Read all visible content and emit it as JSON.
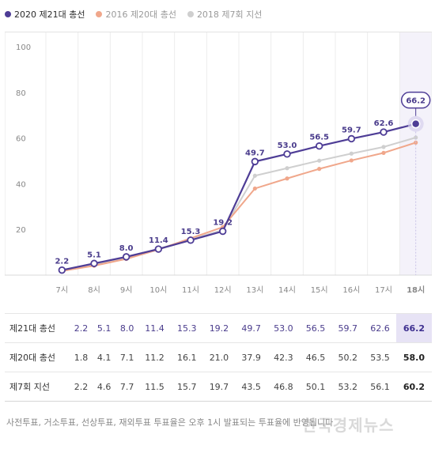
{
  "legend": [
    {
      "label": "2020 제21대 총선",
      "color": "#4e3d96"
    },
    {
      "label": "2016 제20대 총선",
      "color": "#f0a78b"
    },
    {
      "label": "2018 제7회 지선",
      "color": "#cfcfcf"
    }
  ],
  "chart_data": {
    "type": "line",
    "categories": [
      "7시",
      "8시",
      "9시",
      "10시",
      "11시",
      "12시",
      "13시",
      "14시",
      "15시",
      "16시",
      "17시",
      "18시"
    ],
    "ylim": [
      0,
      100
    ],
    "yticks": [
      20,
      40,
      60,
      80,
      100
    ],
    "grid": true,
    "highlight_category": "18시",
    "series": [
      {
        "name": "2020 제21대 총선",
        "color": "#4e3d96",
        "values": [
          2.2,
          5.1,
          8.0,
          11.4,
          15.3,
          19.2,
          49.7,
          53.0,
          56.5,
          59.7,
          62.6,
          66.2
        ]
      },
      {
        "name": "2016 제20대 총선",
        "color": "#f0a78b",
        "values": [
          1.8,
          4.1,
          7.1,
          11.2,
          16.1,
          21.0,
          37.9,
          42.3,
          46.5,
          50.2,
          53.5,
          58.0
        ]
      },
      {
        "name": "2018 제7회 지선",
        "color": "#cfcfcf",
        "values": [
          2.2,
          4.6,
          7.7,
          11.5,
          15.7,
          19.7,
          43.5,
          46.8,
          50.1,
          53.2,
          56.1,
          60.2
        ]
      }
    ]
  },
  "table": {
    "rows": [
      {
        "label": "제21대 총선",
        "values": [
          "2.2",
          "5.1",
          "8.0",
          "11.4",
          "15.3",
          "19.2",
          "49.7",
          "53.0",
          "56.5",
          "59.7",
          "62.6",
          "66.2"
        ]
      },
      {
        "label": "제20대 총선",
        "values": [
          "1.8",
          "4.1",
          "7.1",
          "11.2",
          "16.1",
          "21.0",
          "37.9",
          "42.3",
          "46.5",
          "50.2",
          "53.5",
          "58.0"
        ]
      },
      {
        "label": "제7회 지선",
        "values": [
          "2.2",
          "4.6",
          "7.7",
          "11.5",
          "15.7",
          "19.7",
          "43.5",
          "46.8",
          "50.1",
          "53.2",
          "56.1",
          "60.2"
        ]
      }
    ]
  },
  "footnote": "사전투표, 거소투표, 선상투표, 재외투표 투표율은 오후 1시 발표되는 투표율에 반영됩니다",
  "watermark": "한국경제뉴스"
}
